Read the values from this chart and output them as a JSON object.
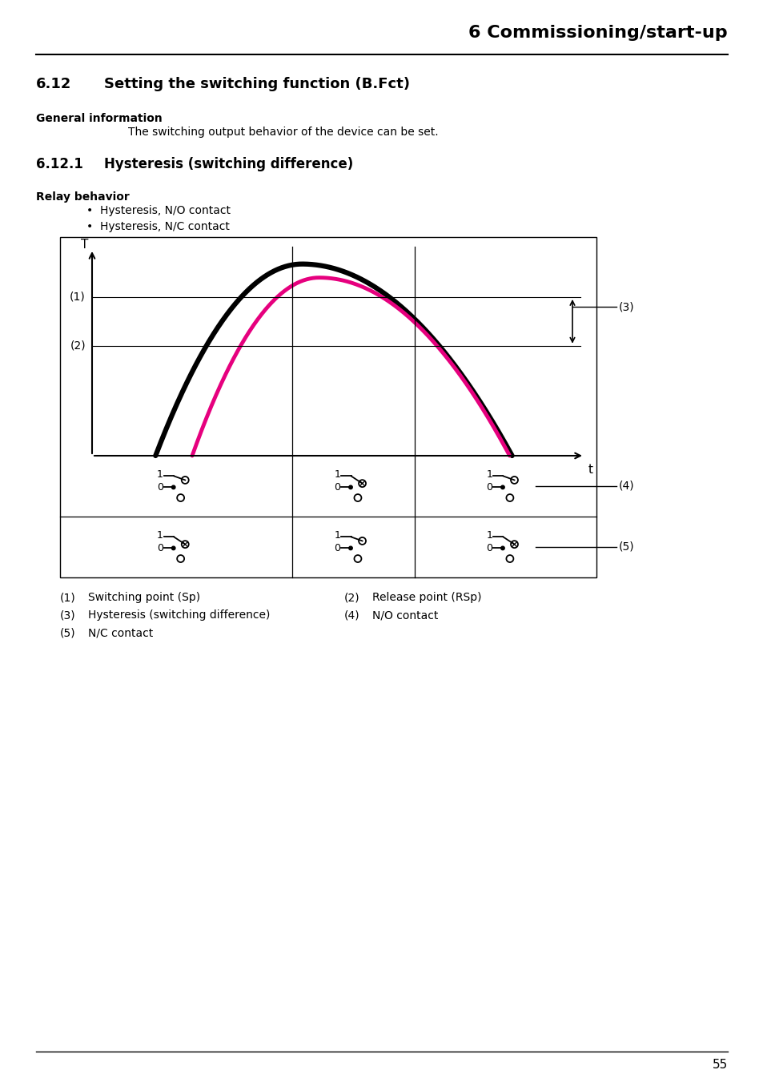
{
  "page_title": "6 Commissioning/start-up",
  "section_num": "6.12",
  "section_text": "Setting the switching function (B.Fct)",
  "general_info_label": "General information",
  "general_info_text": "The switching output behavior of the device can be set.",
  "subsection_num": "6.12.1",
  "subsection_text": "Hysteresis (switching difference)",
  "relay_behavior_label": "Relay behavior",
  "bullet_1": "Hysteresis, N/O contact",
  "bullet_2": "Hysteresis, N/C contact",
  "cap1_num": "(1)",
  "cap1_text": "Switching point (Sp)",
  "cap2_num": "(2)",
  "cap2_text": "Release point (RSp)",
  "cap3_num": "(3)",
  "cap3_text": "Hysteresis (switching difference)",
  "cap4_num": "(4)",
  "cap4_text": "N/O contact",
  "cap5_num": "(5)",
  "cap5_text": "N/C contact",
  "page_number": "55",
  "bg_color": "#ffffff",
  "black": "#000000",
  "magenta": "#e6007e",
  "black_lw": 4.5,
  "magenta_lw": 3.5
}
